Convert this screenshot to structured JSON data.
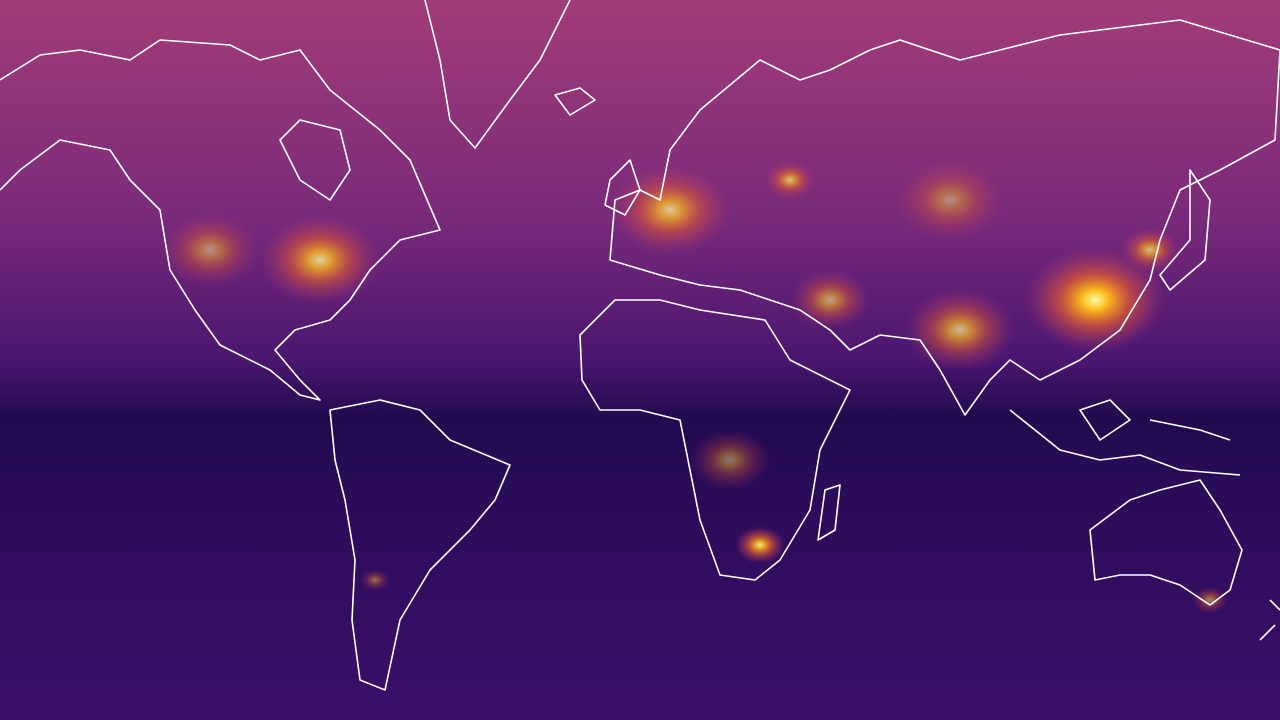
{
  "map": {
    "colormap": {
      "low": "#1a0a45",
      "mid_low": "#3b0f70",
      "mid": "#7a1f6e",
      "mid_high": "#b73779",
      "high": "#f98c0a",
      "peak": "#fcffa4"
    },
    "background_bands": {
      "north": "#9a3a78",
      "north_mid": "#6a2379",
      "equator": "#2a0c55",
      "south": "#3a0f6a"
    },
    "outline_color": "#ffffff",
    "hotspots": [
      {
        "name": "eastern-china",
        "intensity": 1.0
      },
      {
        "name": "india-ganges",
        "intensity": 0.7
      },
      {
        "name": "western-europe",
        "intensity": 0.75
      },
      {
        "name": "eastern-us",
        "intensity": 0.8
      },
      {
        "name": "western-us",
        "intensity": 0.5
      },
      {
        "name": "south-africa",
        "intensity": 0.9
      },
      {
        "name": "middle-east",
        "intensity": 0.6
      },
      {
        "name": "moscow",
        "intensity": 0.7
      },
      {
        "name": "central-africa",
        "intensity": 0.45
      },
      {
        "name": "central-asia",
        "intensity": 0.45
      },
      {
        "name": "korea-japan",
        "intensity": 0.7
      },
      {
        "name": "southeast-australia",
        "intensity": 0.5
      },
      {
        "name": "argentina",
        "intensity": 0.4
      }
    ]
  }
}
